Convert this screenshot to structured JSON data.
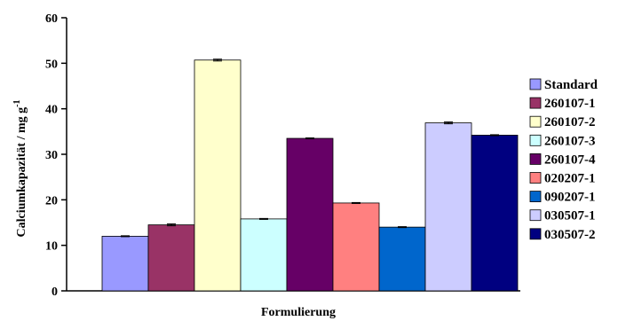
{
  "chart_data": {
    "type": "bar",
    "xlabel": "Formulierung",
    "ylabel": "Calciumkapazität / mg g",
    "ylabel_sup": "-1",
    "ylim": [
      0,
      60
    ],
    "yticks": [
      0,
      10,
      20,
      30,
      40,
      50,
      60
    ],
    "grid": false,
    "legend_position": "right",
    "series": [
      {
        "name": "Standard",
        "value": 12.0,
        "error": 0.1,
        "color": "#9999FF"
      },
      {
        "name": "260107-1",
        "value": 14.5,
        "error": 0.2,
        "color": "#993366"
      },
      {
        "name": "260107-2",
        "value": 50.7,
        "error": 0.2,
        "color": "#FFFFCC"
      },
      {
        "name": "260107-3",
        "value": 15.8,
        "error": 0.1,
        "color": "#CCFFFF"
      },
      {
        "name": "260107-4",
        "value": 33.5,
        "error": 0.1,
        "color": "#660066"
      },
      {
        "name": "020207-1",
        "value": 19.3,
        "error": 0.1,
        "color": "#FF8080"
      },
      {
        "name": "090207-1",
        "value": 14.0,
        "error": 0.1,
        "color": "#0066CC"
      },
      {
        "name": "030507-1",
        "value": 36.9,
        "error": 0.2,
        "color": "#CCCCFF"
      },
      {
        "name": "030507-2",
        "value": 34.2,
        "error": 0.1,
        "color": "#000080"
      }
    ]
  }
}
